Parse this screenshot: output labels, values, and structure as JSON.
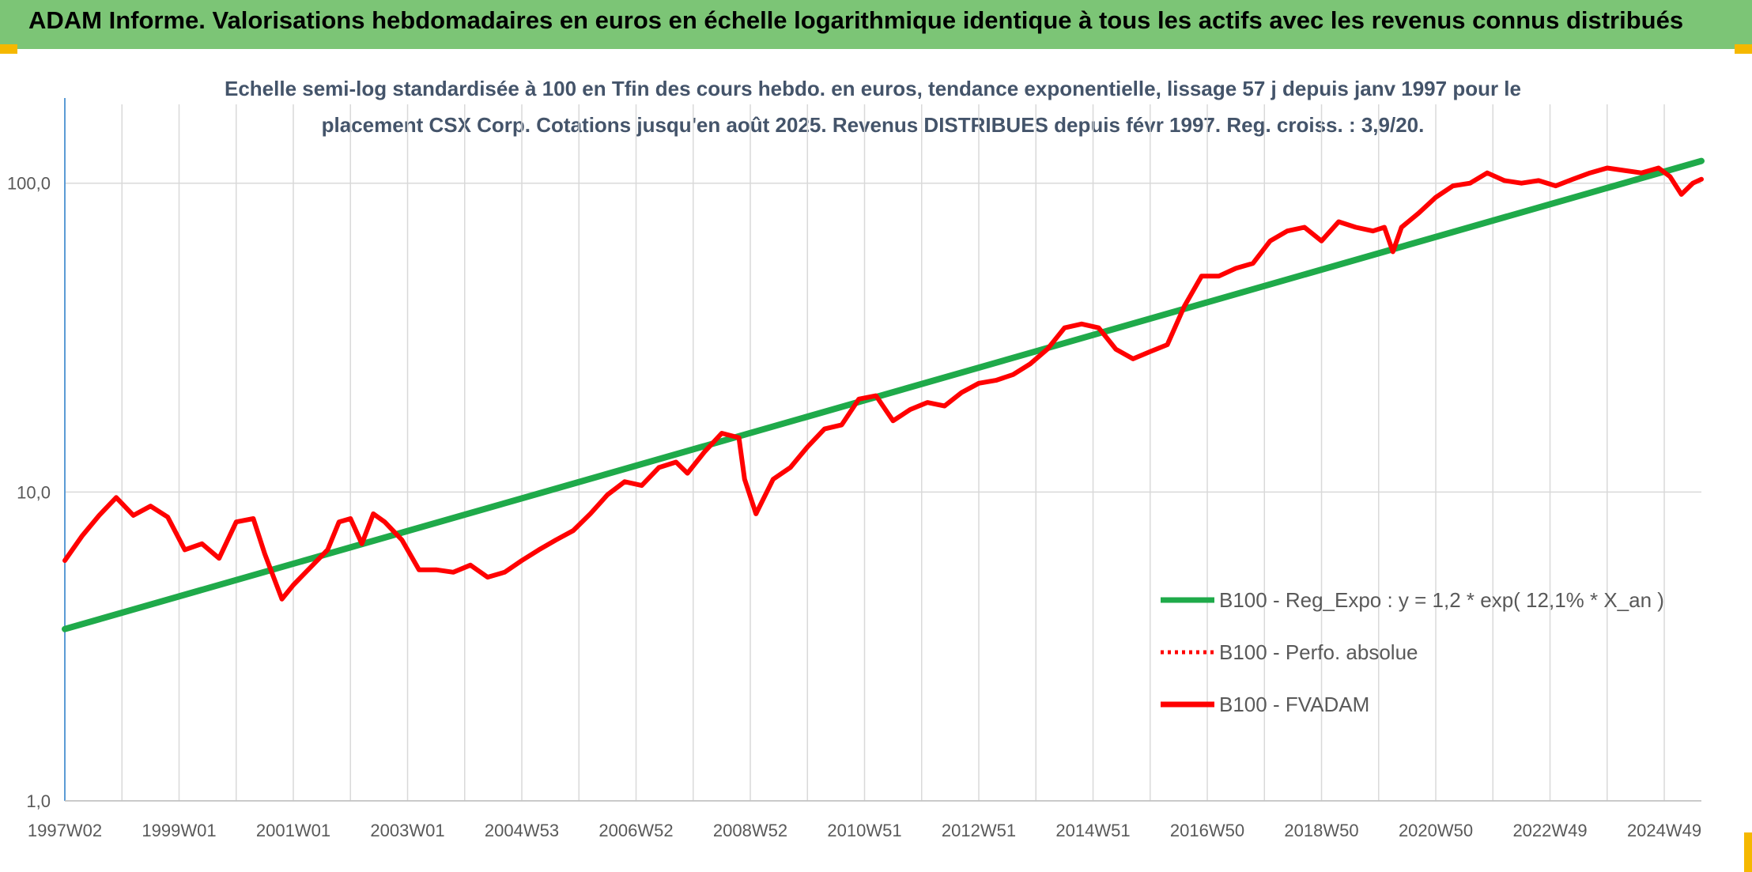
{
  "banner": {
    "title": "ADAM Informe. Valorisations hebdomadaires en euros en échelle logarithmique identique à tous les actifs avec les revenus connus distribués",
    "color": "#7cc576"
  },
  "chart_data": {
    "type": "line",
    "title_lines": [
      "Echelle semi-log standardisée à 100 en Tfin des cours hebdo. en euros, tendance exponentielle, lissage 57 j depuis janv 1997 pour le",
      "placement CSX Corp. Cotations jusqu'en août 2025. Revenus DISTRIBUES depuis févr 1997. Reg. croiss. : 3,9/20."
    ],
    "y_scale": "log",
    "ylim": [
      1,
      180
    ],
    "y_ticks": [
      1,
      10,
      100
    ],
    "y_tick_labels": [
      "1,0",
      "10,0",
      "100,0"
    ],
    "x_range": [
      1997.0,
      2025.65
    ],
    "x_ticks": [
      1997.0,
      1999.0,
      2001.0,
      2003.0,
      2005.0,
      2007.0,
      2009.0,
      2011.0,
      2013.0,
      2015.0,
      2017.0,
      2019.0,
      2021.0,
      2023.0,
      2025.0
    ],
    "x_tick_labels": [
      "1997W02",
      "1999W01",
      "2001W01",
      "2003W01",
      "2004W53",
      "2006W52",
      "2008W52",
      "2010W51",
      "2012W51",
      "2014W51",
      "2016W50",
      "2018W50",
      "2020W50",
      "2022W49",
      "2024W49"
    ],
    "grid": "vertical and horizontal",
    "legend_position": "bottom-right",
    "series": [
      {
        "name": "B100 - Reg_Expo : y = 1,2 * exp( 12,1% *  X_an )",
        "color": "#1faa4a",
        "style": "solid",
        "x": [
          1997.0,
          2025.65
        ],
        "y": [
          3.6,
          118
        ]
      },
      {
        "name": "B100 - Perfo. absolue",
        "color": "#ff0000",
        "style": "dotted",
        "x": [],
        "y": []
      },
      {
        "name": "B100 - FVADAM",
        "color": "#ff0000",
        "style": "solid",
        "x": [
          1997.0,
          1997.3,
          1997.6,
          1997.9,
          1998.2,
          1998.5,
          1998.8,
          1999.1,
          1999.4,
          1999.7,
          2000.0,
          2000.3,
          2000.5,
          2000.8,
          2001.0,
          2001.3,
          2001.6,
          2001.8,
          2002.0,
          2002.2,
          2002.4,
          2002.6,
          2002.9,
          2003.2,
          2003.5,
          2003.8,
          2004.1,
          2004.4,
          2004.7,
          2005.0,
          2005.3,
          2005.6,
          2005.9,
          2006.2,
          2006.5,
          2006.8,
          2007.1,
          2007.4,
          2007.7,
          2007.9,
          2008.2,
          2008.5,
          2008.8,
          2008.9,
          2009.1,
          2009.4,
          2009.7,
          2010.0,
          2010.3,
          2010.6,
          2010.9,
          2011.2,
          2011.5,
          2011.8,
          2012.1,
          2012.4,
          2012.7,
          2013.0,
          2013.3,
          2013.6,
          2013.9,
          2014.2,
          2014.5,
          2014.8,
          2015.1,
          2015.4,
          2015.7,
          2016.0,
          2016.3,
          2016.6,
          2016.9,
          2017.2,
          2017.5,
          2017.8,
          2018.1,
          2018.4,
          2018.7,
          2019.0,
          2019.3,
          2019.6,
          2019.9,
          2020.1,
          2020.25,
          2020.4,
          2020.7,
          2021.0,
          2021.3,
          2021.6,
          2021.9,
          2022.2,
          2022.5,
          2022.8,
          2023.1,
          2023.4,
          2023.7,
          2024.0,
          2024.3,
          2024.6,
          2024.9,
          2025.1,
          2025.3,
          2025.5,
          2025.65
        ],
        "y": [
          6.0,
          7.2,
          8.4,
          9.6,
          8.4,
          9.0,
          8.3,
          6.5,
          6.8,
          6.1,
          8.0,
          8.2,
          6.3,
          4.5,
          5.0,
          5.7,
          6.5,
          8.0,
          8.2,
          6.8,
          8.5,
          8.0,
          7.0,
          5.6,
          5.6,
          5.5,
          5.8,
          5.3,
          5.5,
          6.0,
          6.5,
          7.0,
          7.5,
          8.5,
          9.8,
          10.8,
          10.5,
          12.0,
          12.5,
          11.5,
          13.5,
          15.5,
          15.0,
          11.0,
          8.5,
          11.0,
          12.0,
          14.0,
          16.0,
          16.5,
          20.0,
          20.5,
          17.0,
          18.5,
          19.5,
          19.0,
          21.0,
          22.5,
          23.0,
          24.0,
          26.0,
          29.0,
          34.0,
          35.0,
          34.0,
          29.0,
          27.0,
          28.5,
          30.0,
          40.0,
          50.0,
          50.0,
          53.0,
          55.0,
          65.0,
          70.0,
          72.0,
          65.0,
          75.0,
          72.0,
          70.0,
          72.0,
          60.0,
          72.0,
          80.0,
          90.0,
          98.0,
          100.0,
          108.0,
          102.0,
          100.0,
          102.0,
          98.0,
          103.0,
          108.0,
          112.0,
          110.0,
          108.0,
          112.0,
          105.0,
          92.0,
          100.0,
          103.0
        ]
      }
    ]
  }
}
